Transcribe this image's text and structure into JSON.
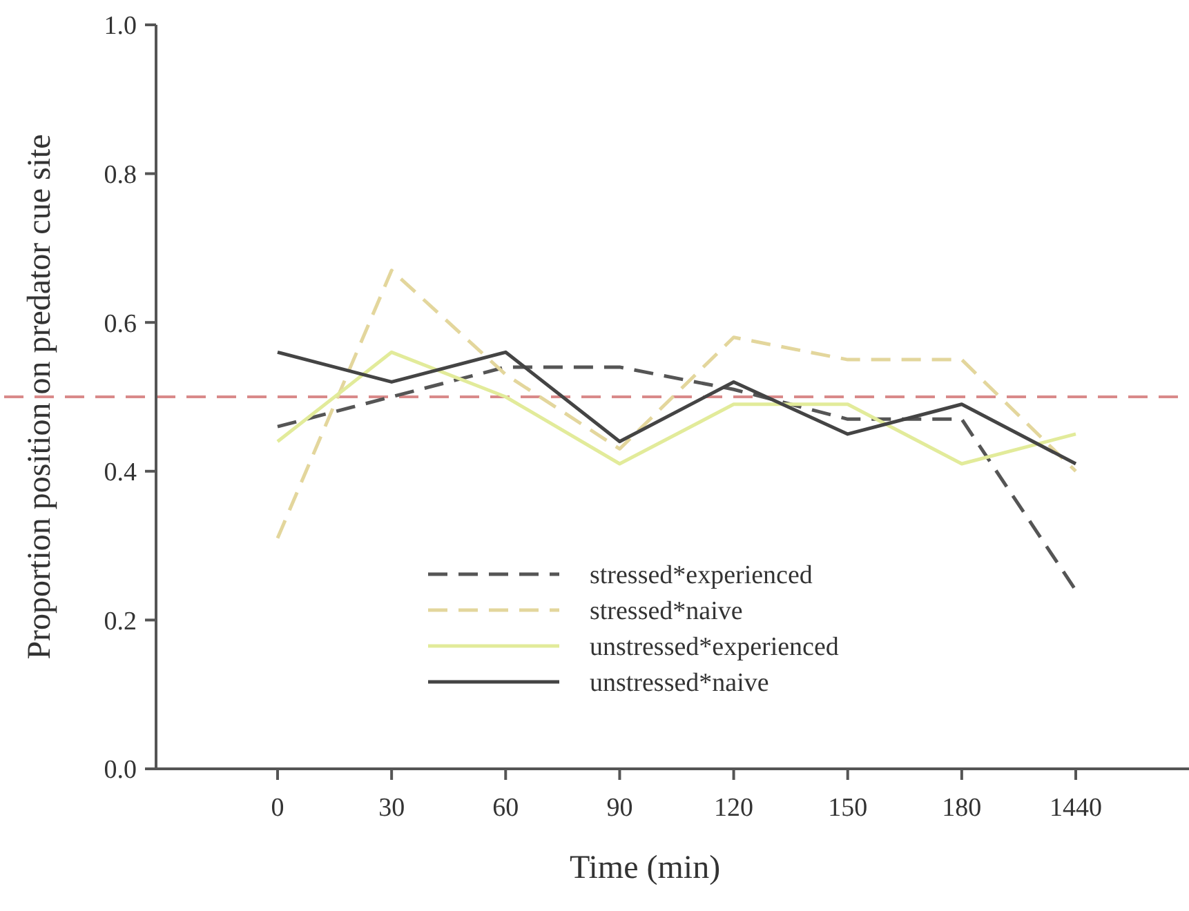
{
  "chart_data": {
    "type": "line",
    "xlabel": "Time (min)",
    "ylabel": "Proportion position on predator cue site",
    "categories": [
      "0",
      "30",
      "60",
      "90",
      "120",
      "150",
      "180",
      "1440"
    ],
    "ylim": [
      0,
      1
    ],
    "yticks": [
      {
        "value": 0,
        "label": "0.0"
      },
      0.2,
      0.4,
      0.6,
      0.8,
      {
        "value": 1,
        "label": "1.0"
      }
    ],
    "grid": false,
    "legend": "bottom",
    "series": [
      {
        "name": "stressed*experienced",
        "color": "#555555",
        "line_style": "dashed",
        "values": [
          0.46,
          0.5,
          0.54,
          0.54,
          0.51,
          0.47,
          0.47,
          0.24
        ]
      },
      {
        "name": "stressed*naive",
        "color": "#e3d69c",
        "line_style": "dashed",
        "values": [
          0.31,
          0.67,
          0.53,
          0.43,
          0.58,
          0.55,
          0.55,
          0.4
        ]
      },
      {
        "name": "unstressed*experienced",
        "color": "#e2eb9a",
        "line_style": "solid",
        "values": [
          0.44,
          0.56,
          0.5,
          0.41,
          0.49,
          0.49,
          0.41,
          0.45
        ]
      },
      {
        "name": "unstressed*naive",
        "color": "#444444",
        "line_style": "solid",
        "values": [
          0.56,
          0.52,
          0.56,
          0.44,
          0.52,
          0.45,
          0.49,
          0.41
        ]
      }
    ],
    "ref_lines": [
      {
        "axis": "y",
        "value": 0.5,
        "color": "#d98a8a",
        "line_style": "dashed"
      }
    ]
  }
}
